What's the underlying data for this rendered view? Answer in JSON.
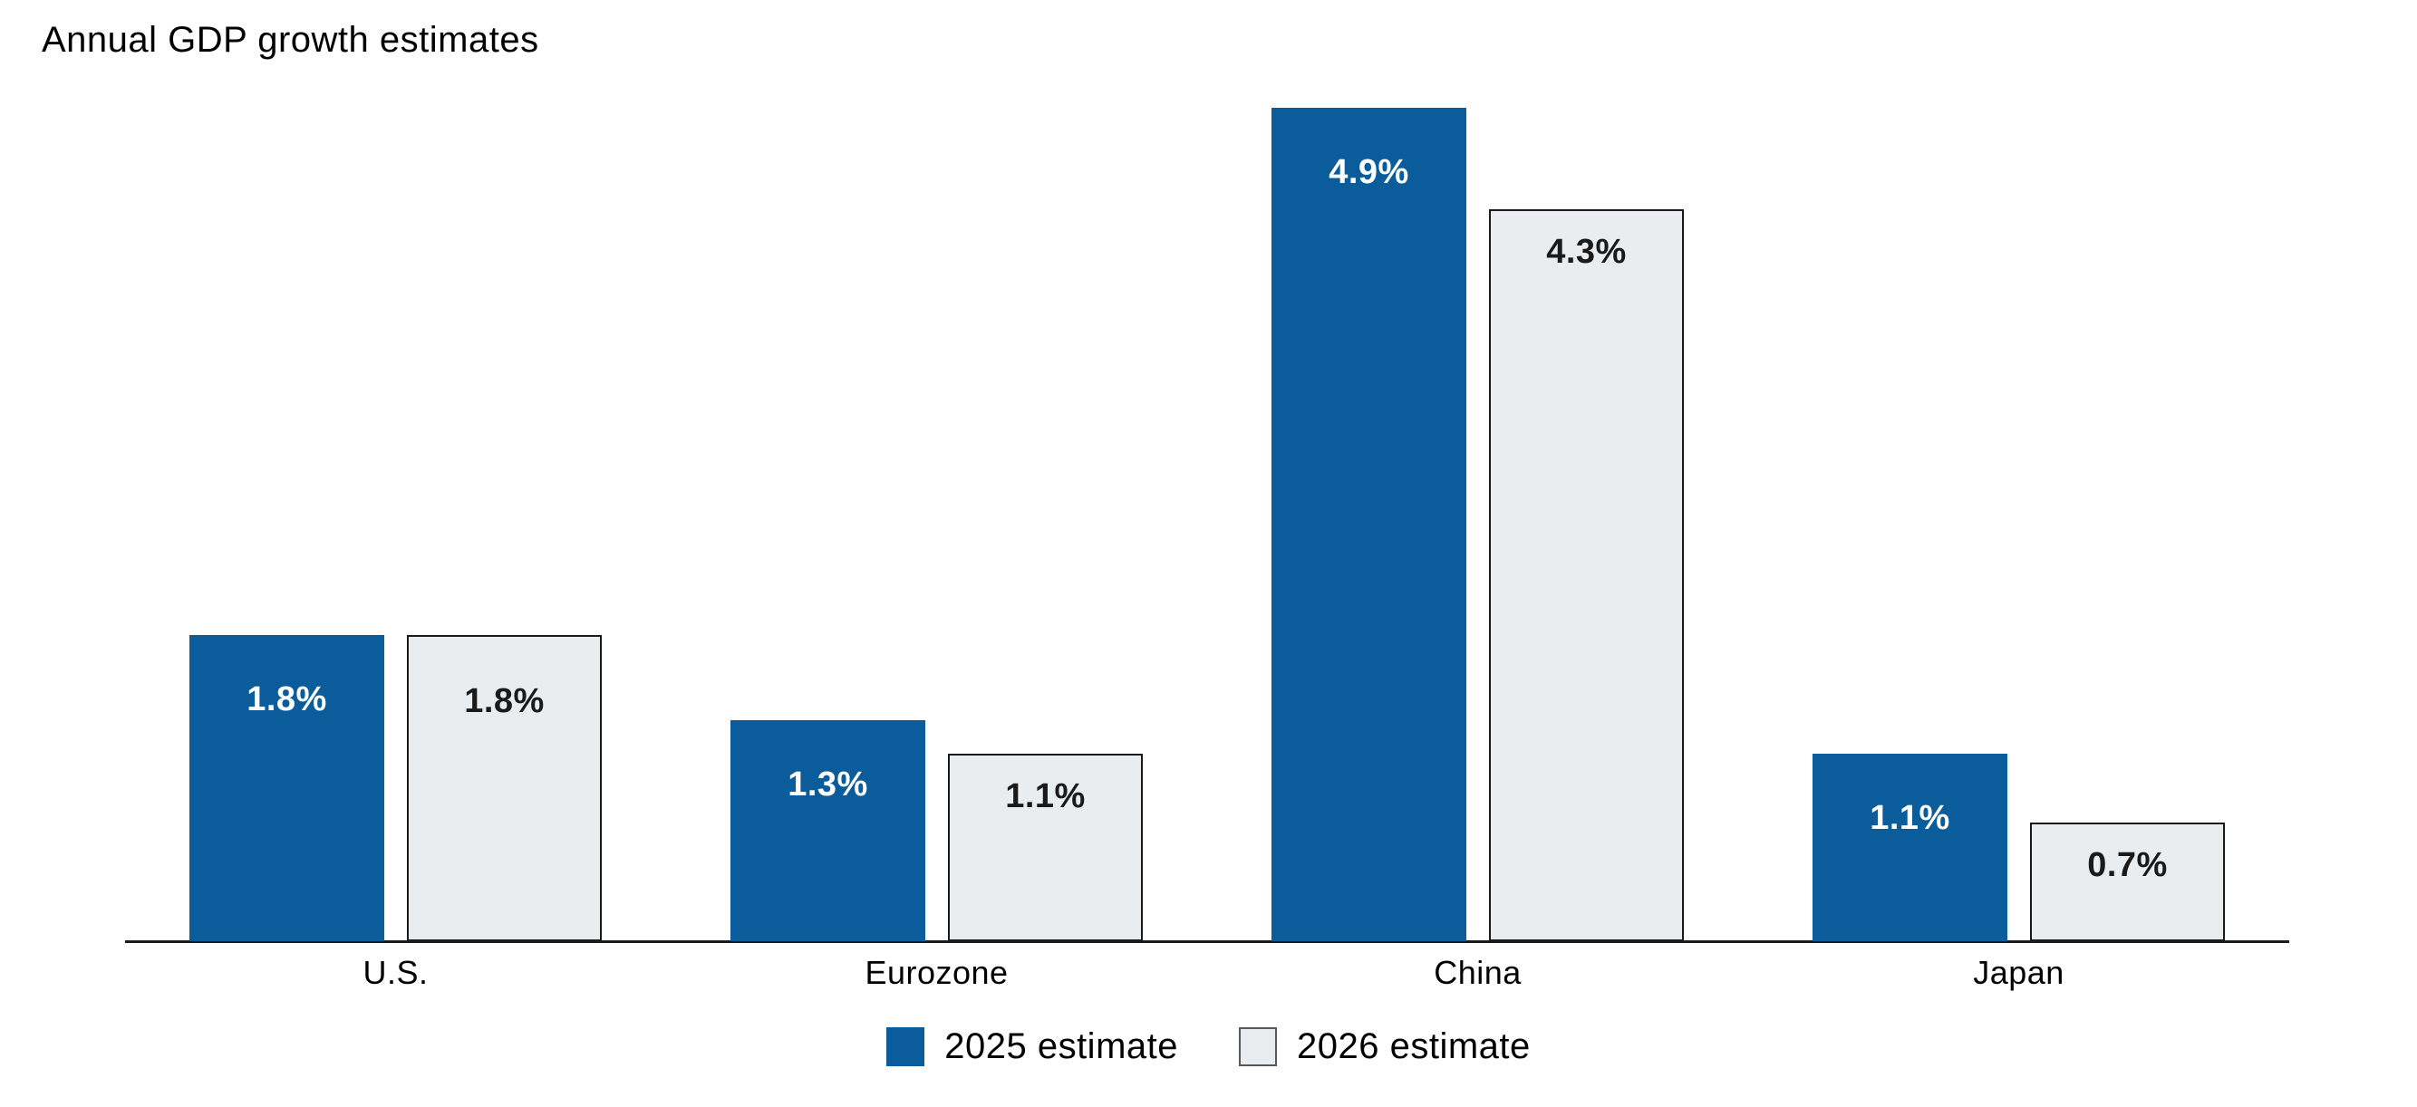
{
  "chart_data": {
    "type": "bar",
    "title": "Annual GDP growth estimates",
    "categories": [
      "U.S.",
      "Eurozone",
      "China",
      "Japan"
    ],
    "series": [
      {
        "name": "2025 estimate",
        "values": [
          1.8,
          1.3,
          4.9,
          1.1
        ],
        "labels": [
          "1.8%",
          "1.3%",
          "4.9%",
          "1.1%"
        ],
        "fill": "#0A5C9B",
        "label_color": "#FFFFFF",
        "border_color": "none"
      },
      {
        "name": "2026 estimate",
        "values": [
          1.8,
          1.1,
          4.3,
          0.7
        ],
        "labels": [
          "1.8%",
          "1.1%",
          "4.3%",
          "0.7%"
        ],
        "fill": "#E9EDF0",
        "label_color": "#1A1A1A",
        "border_color": "#1A1A1A"
      }
    ],
    "xlabel": "",
    "ylabel": "",
    "ylim": [
      0,
      5.2
    ],
    "grid": false,
    "y_axis_visible": false,
    "x_axis_line_visible": true,
    "value_label_position": "inside-top",
    "legend_position": "bottom-center"
  },
  "colors": {
    "accent_blue": "#0A5C9B",
    "light_gray_fill": "#E9EDF0",
    "bar_border": "#1A1A1A",
    "axis_line": "#1A1A1A",
    "legend_swatch_border": "#55585C",
    "title_text": "#000000"
  }
}
